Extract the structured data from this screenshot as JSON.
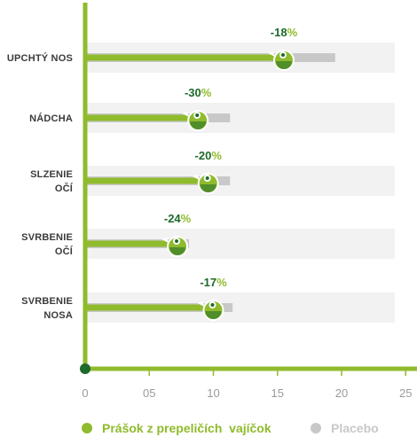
{
  "chart_data": {
    "type": "bar",
    "orientation": "horizontal",
    "categories": [
      [
        "UPCHTÝ NOS"
      ],
      [
        "NÁDCHA"
      ],
      [
        "SLZENIE",
        "OČÍ"
      ],
      [
        "SVRBENIE",
        "OČÍ"
      ],
      [
        "SVRBENIE",
        "NOSA"
      ]
    ],
    "series": [
      {
        "name": "Prášok z prepeličích  vajíčok",
        "values": [
          15.5,
          8.8,
          9.6,
          7.2,
          10.0
        ]
      },
      {
        "name": "Placebo",
        "values": [
          19.5,
          11.3,
          11.3,
          8.1,
          11.5
        ]
      }
    ],
    "reduction_labels": [
      {
        "number": "-18",
        "unit": "%"
      },
      {
        "number": "-30",
        "unit": "%"
      },
      {
        "number": "-20",
        "unit": "%"
      },
      {
        "number": "-24",
        "unit": "%"
      },
      {
        "number": "-17",
        "unit": "%"
      }
    ],
    "xticks": [
      "0",
      "05",
      "10",
      "15",
      "20",
      "25"
    ],
    "xlim": [
      0,
      26
    ],
    "legend_position": "bottom",
    "colors": {
      "treatment": "#8fbb2c",
      "treatment_dark": "#1d6a2b",
      "placebo": "#c8c8c8",
      "band": "#f2f2f2",
      "axis": "#8fbb2c",
      "pct_number": "#1d6a2b",
      "pct_unit": "#8fbb2c"
    }
  },
  "legend": {
    "treatment_label": "Prášok z prepeličích  vajíčok",
    "placebo_label": "Placebo"
  }
}
